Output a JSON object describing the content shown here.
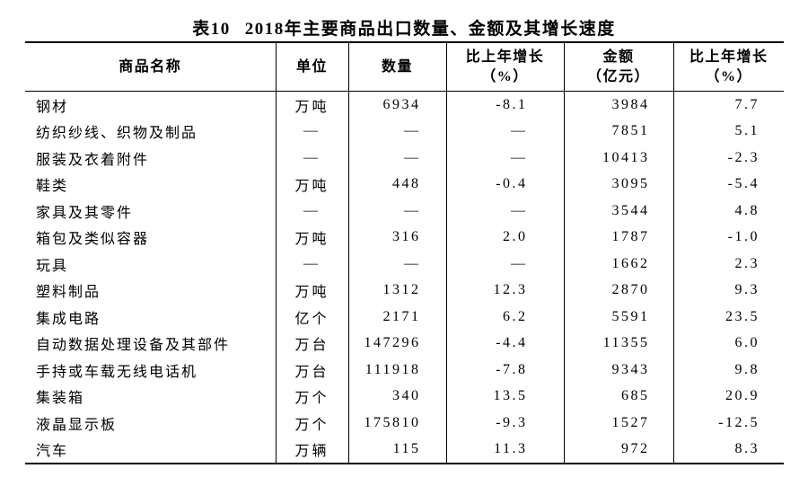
{
  "title": {
    "tag": "表10",
    "text": "2018年主要商品出口数量、金额及其增长速度"
  },
  "table": {
    "headers": [
      {
        "line1": "商品名称",
        "line2": ""
      },
      {
        "line1": "单位",
        "line2": ""
      },
      {
        "line1": "数量",
        "line2": ""
      },
      {
        "line1": "比上年增长",
        "line2": "（%）"
      },
      {
        "line1": "金额",
        "line2": "（亿元）"
      },
      {
        "line1": "比上年增长",
        "line2": "（%）"
      }
    ],
    "rows": [
      [
        "钢材",
        "万吨",
        "6934",
        "-8.1",
        "3984",
        "7.7"
      ],
      [
        "纺织纱线、织物及制品",
        "—",
        "—",
        "—",
        "7851",
        "5.1"
      ],
      [
        "服装及衣着附件",
        "—",
        "—",
        "—",
        "10413",
        "-2.3"
      ],
      [
        "鞋类",
        "万吨",
        "448",
        "-0.4",
        "3095",
        "-5.4"
      ],
      [
        "家具及其零件",
        "—",
        "—",
        "—",
        "3544",
        "4.8"
      ],
      [
        "箱包及类似容器",
        "万吨",
        "316",
        "2.0",
        "1787",
        "-1.0"
      ],
      [
        "玩具",
        "—",
        "—",
        "—",
        "1662",
        "2.3"
      ],
      [
        "塑料制品",
        "万吨",
        "1312",
        "12.3",
        "2870",
        "9.3"
      ],
      [
        "集成电路",
        "亿个",
        "2171",
        "6.2",
        "5591",
        "23.5"
      ],
      [
        "自动数据处理设备及其部件",
        "万台",
        "147296",
        "-4.4",
        "11355",
        "6.0"
      ],
      [
        "手持或车载无线电话机",
        "万台",
        "111918",
        "-7.8",
        "9343",
        "9.8"
      ],
      [
        "集装箱",
        "万个",
        "340",
        "13.5",
        "685",
        "20.9"
      ],
      [
        "液晶显示板",
        "万个",
        "175810",
        "-9.3",
        "1527",
        "-12.5"
      ],
      [
        "汽车",
        "万辆",
        "115",
        "11.3",
        "972",
        "8.3"
      ]
    ]
  },
  "chart_data": {
    "type": "table",
    "title": "表10 2018年主要商品出口数量、金额及其增长速度",
    "columns": [
      "商品名称",
      "单位",
      "数量",
      "比上年增长（%）",
      "金额（亿元）",
      "比上年增长（%）"
    ],
    "records": [
      {
        "name": "钢材",
        "unit": "万吨",
        "quantity": 6934,
        "quantity_growth_pct": -8.1,
        "value_100m_yuan": 3984,
        "value_growth_pct": 7.7
      },
      {
        "name": "纺织纱线、织物及制品",
        "unit": null,
        "quantity": null,
        "quantity_growth_pct": null,
        "value_100m_yuan": 7851,
        "value_growth_pct": 5.1
      },
      {
        "name": "服装及衣着附件",
        "unit": null,
        "quantity": null,
        "quantity_growth_pct": null,
        "value_100m_yuan": 10413,
        "value_growth_pct": -2.3
      },
      {
        "name": "鞋类",
        "unit": "万吨",
        "quantity": 448,
        "quantity_growth_pct": -0.4,
        "value_100m_yuan": 3095,
        "value_growth_pct": -5.4
      },
      {
        "name": "家具及其零件",
        "unit": null,
        "quantity": null,
        "quantity_growth_pct": null,
        "value_100m_yuan": 3544,
        "value_growth_pct": 4.8
      },
      {
        "name": "箱包及类似容器",
        "unit": "万吨",
        "quantity": 316,
        "quantity_growth_pct": 2.0,
        "value_100m_yuan": 1787,
        "value_growth_pct": -1.0
      },
      {
        "name": "玩具",
        "unit": null,
        "quantity": null,
        "quantity_growth_pct": null,
        "value_100m_yuan": 1662,
        "value_growth_pct": 2.3
      },
      {
        "name": "塑料制品",
        "unit": "万吨",
        "quantity": 1312,
        "quantity_growth_pct": 12.3,
        "value_100m_yuan": 2870,
        "value_growth_pct": 9.3
      },
      {
        "name": "集成电路",
        "unit": "亿个",
        "quantity": 2171,
        "quantity_growth_pct": 6.2,
        "value_100m_yuan": 5591,
        "value_growth_pct": 23.5
      },
      {
        "name": "自动数据处理设备及其部件",
        "unit": "万台",
        "quantity": 147296,
        "quantity_growth_pct": -4.4,
        "value_100m_yuan": 11355,
        "value_growth_pct": 6.0
      },
      {
        "name": "手持或车载无线电话机",
        "unit": "万台",
        "quantity": 111918,
        "quantity_growth_pct": -7.8,
        "value_100m_yuan": 9343,
        "value_growth_pct": 9.8
      },
      {
        "name": "集装箱",
        "unit": "万个",
        "quantity": 340,
        "quantity_growth_pct": 13.5,
        "value_100m_yuan": 685,
        "value_growth_pct": 20.9
      },
      {
        "name": "液晶显示板",
        "unit": "万个",
        "quantity": 175810,
        "quantity_growth_pct": -9.3,
        "value_100m_yuan": 1527,
        "value_growth_pct": -12.5
      },
      {
        "name": "汽车",
        "unit": "万辆",
        "quantity": 115,
        "quantity_growth_pct": 11.3,
        "value_100m_yuan": 972,
        "value_growth_pct": 8.3
      }
    ]
  }
}
